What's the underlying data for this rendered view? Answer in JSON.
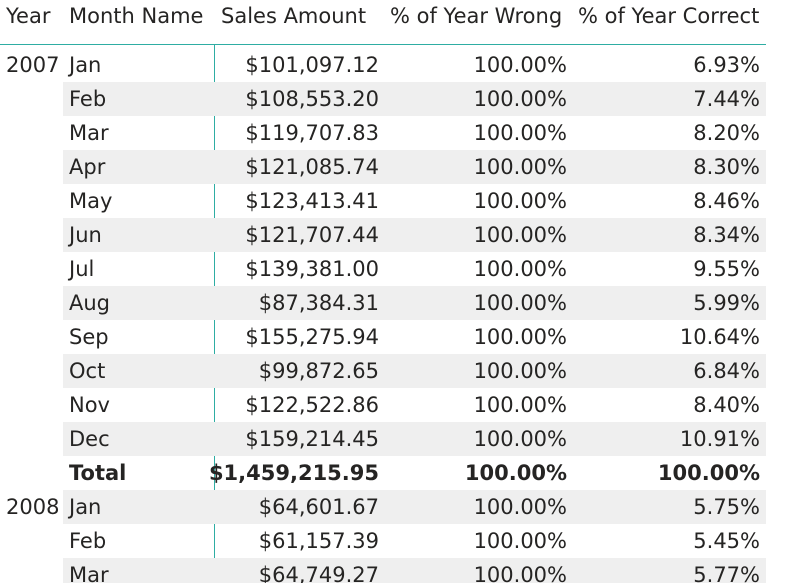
{
  "headers": {
    "year": "Year",
    "month": "Month Name",
    "sales": "Sales Amount",
    "wrong": "% of Year Wrong",
    "correct": "% of Year Correct"
  },
  "rows": [
    {
      "year": "2007",
      "month": "Jan",
      "sales": "$101,097.12",
      "wrong": "100.00%",
      "correct": "6.93%"
    },
    {
      "year": "",
      "month": "Feb",
      "sales": "$108,553.20",
      "wrong": "100.00%",
      "correct": "7.44%"
    },
    {
      "year": "",
      "month": "Mar",
      "sales": "$119,707.83",
      "wrong": "100.00%",
      "correct": "8.20%"
    },
    {
      "year": "",
      "month": "Apr",
      "sales": "$121,085.74",
      "wrong": "100.00%",
      "correct": "8.30%"
    },
    {
      "year": "",
      "month": "May",
      "sales": "$123,413.41",
      "wrong": "100.00%",
      "correct": "8.46%"
    },
    {
      "year": "",
      "month": "Jun",
      "sales": "$121,707.44",
      "wrong": "100.00%",
      "correct": "8.34%"
    },
    {
      "year": "",
      "month": "Jul",
      "sales": "$139,381.00",
      "wrong": "100.00%",
      "correct": "9.55%"
    },
    {
      "year": "",
      "month": "Aug",
      "sales": "$87,384.31",
      "wrong": "100.00%",
      "correct": "5.99%"
    },
    {
      "year": "",
      "month": "Sep",
      "sales": "$155,275.94",
      "wrong": "100.00%",
      "correct": "10.64%"
    },
    {
      "year": "",
      "month": "Oct",
      "sales": "$99,872.65",
      "wrong": "100.00%",
      "correct": "6.84%"
    },
    {
      "year": "",
      "month": "Nov",
      "sales": "$122,522.86",
      "wrong": "100.00%",
      "correct": "8.40%"
    },
    {
      "year": "",
      "month": "Dec",
      "sales": "$159,214.45",
      "wrong": "100.00%",
      "correct": "10.91%"
    },
    {
      "year": "",
      "month": "Total",
      "sales": "$1,459,215.95",
      "wrong": "100.00%",
      "correct": "100.00%"
    },
    {
      "year": "2008",
      "month": "Jan",
      "sales": "$64,601.67",
      "wrong": "100.00%",
      "correct": "5.75%"
    },
    {
      "year": "",
      "month": "Feb",
      "sales": "$61,157.39",
      "wrong": "100.00%",
      "correct": "5.45%"
    },
    {
      "year": "",
      "month": "Mar",
      "sales": "$64,749.27",
      "wrong": "100.00%",
      "correct": "5.77%"
    }
  ],
  "colors": {
    "accent": "#2eada3",
    "row_shade": "#efefef",
    "text": "#252423"
  }
}
